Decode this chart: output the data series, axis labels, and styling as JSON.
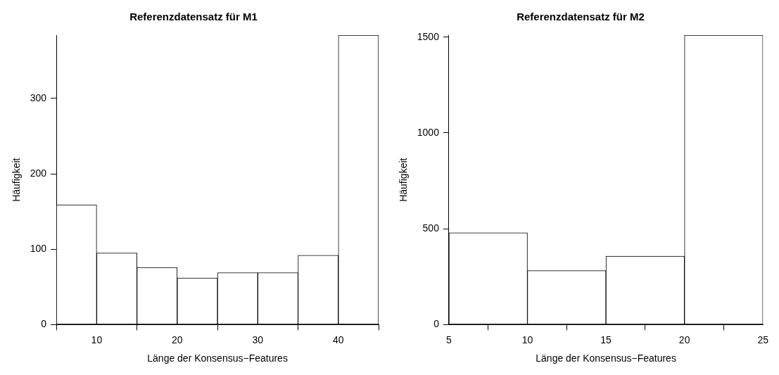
{
  "chart_data": [
    {
      "type": "histogram",
      "title": "Referenzdatensatz für M1",
      "xlabel": "Länge der Konsensus−Features",
      "ylabel": "Häufigkeit",
      "bins": [
        5,
        10,
        15,
        20,
        25,
        30,
        35,
        40,
        45
      ],
      "values": [
        159,
        95,
        76,
        62,
        69,
        69,
        92,
        384
      ],
      "color": "#ffffff",
      "xlim": [
        5,
        45
      ],
      "xticks": [
        10,
        20,
        30,
        40
      ],
      "ylim": [
        0,
        384
      ],
      "yticks": [
        0,
        100,
        200,
        300
      ]
    },
    {
      "type": "histogram",
      "title": "Referenzdatensatz für M2",
      "xlabel": "Länge der Konsensus−Features",
      "ylabel": "Häufigkeit",
      "bins": [
        5,
        10,
        15,
        20,
        25
      ],
      "values": [
        479,
        282,
        357,
        1510
      ],
      "color": "#ffffff",
      "xlim": [
        5,
        25
      ],
      "xticks": [
        5,
        10,
        15,
        20,
        25
      ],
      "ylim": [
        0,
        1510
      ],
      "yticks": [
        0,
        500,
        1000,
        1500
      ]
    }
  ]
}
